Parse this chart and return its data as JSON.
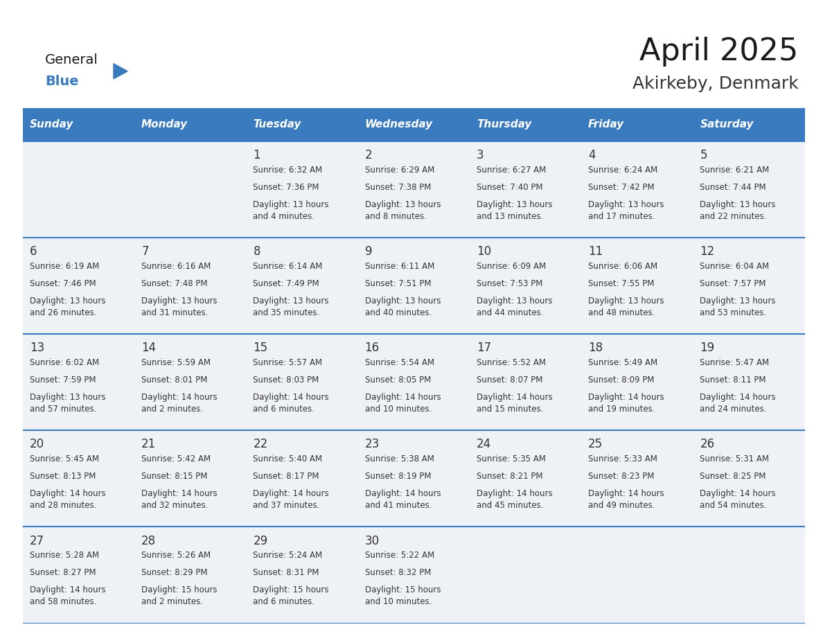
{
  "title": "April 2025",
  "subtitle": "Akirkeby, Denmark",
  "header_color": "#3a7abf",
  "header_text_color": "#ffffff",
  "cell_bg_even": "#eef2f7",
  "cell_bg_odd": "#ffffff",
  "border_color": "#3a7abf",
  "title_color": "#1a1a1a",
  "subtitle_color": "#333333",
  "text_color": "#333333",
  "day_headers": [
    "Sunday",
    "Monday",
    "Tuesday",
    "Wednesday",
    "Thursday",
    "Friday",
    "Saturday"
  ],
  "weeks": [
    [
      {
        "day": "",
        "sunrise": "",
        "sunset": "",
        "daylight": ""
      },
      {
        "day": "",
        "sunrise": "",
        "sunset": "",
        "daylight": ""
      },
      {
        "day": "1",
        "sunrise": "Sunrise: 6:32 AM",
        "sunset": "Sunset: 7:36 PM",
        "daylight": "Daylight: 13 hours\nand 4 minutes."
      },
      {
        "day": "2",
        "sunrise": "Sunrise: 6:29 AM",
        "sunset": "Sunset: 7:38 PM",
        "daylight": "Daylight: 13 hours\nand 8 minutes."
      },
      {
        "day": "3",
        "sunrise": "Sunrise: 6:27 AM",
        "sunset": "Sunset: 7:40 PM",
        "daylight": "Daylight: 13 hours\nand 13 minutes."
      },
      {
        "day": "4",
        "sunrise": "Sunrise: 6:24 AM",
        "sunset": "Sunset: 7:42 PM",
        "daylight": "Daylight: 13 hours\nand 17 minutes."
      },
      {
        "day": "5",
        "sunrise": "Sunrise: 6:21 AM",
        "sunset": "Sunset: 7:44 PM",
        "daylight": "Daylight: 13 hours\nand 22 minutes."
      }
    ],
    [
      {
        "day": "6",
        "sunrise": "Sunrise: 6:19 AM",
        "sunset": "Sunset: 7:46 PM",
        "daylight": "Daylight: 13 hours\nand 26 minutes."
      },
      {
        "day": "7",
        "sunrise": "Sunrise: 6:16 AM",
        "sunset": "Sunset: 7:48 PM",
        "daylight": "Daylight: 13 hours\nand 31 minutes."
      },
      {
        "day": "8",
        "sunrise": "Sunrise: 6:14 AM",
        "sunset": "Sunset: 7:49 PM",
        "daylight": "Daylight: 13 hours\nand 35 minutes."
      },
      {
        "day": "9",
        "sunrise": "Sunrise: 6:11 AM",
        "sunset": "Sunset: 7:51 PM",
        "daylight": "Daylight: 13 hours\nand 40 minutes."
      },
      {
        "day": "10",
        "sunrise": "Sunrise: 6:09 AM",
        "sunset": "Sunset: 7:53 PM",
        "daylight": "Daylight: 13 hours\nand 44 minutes."
      },
      {
        "day": "11",
        "sunrise": "Sunrise: 6:06 AM",
        "sunset": "Sunset: 7:55 PM",
        "daylight": "Daylight: 13 hours\nand 48 minutes."
      },
      {
        "day": "12",
        "sunrise": "Sunrise: 6:04 AM",
        "sunset": "Sunset: 7:57 PM",
        "daylight": "Daylight: 13 hours\nand 53 minutes."
      }
    ],
    [
      {
        "day": "13",
        "sunrise": "Sunrise: 6:02 AM",
        "sunset": "Sunset: 7:59 PM",
        "daylight": "Daylight: 13 hours\nand 57 minutes."
      },
      {
        "day": "14",
        "sunrise": "Sunrise: 5:59 AM",
        "sunset": "Sunset: 8:01 PM",
        "daylight": "Daylight: 14 hours\nand 2 minutes."
      },
      {
        "day": "15",
        "sunrise": "Sunrise: 5:57 AM",
        "sunset": "Sunset: 8:03 PM",
        "daylight": "Daylight: 14 hours\nand 6 minutes."
      },
      {
        "day": "16",
        "sunrise": "Sunrise: 5:54 AM",
        "sunset": "Sunset: 8:05 PM",
        "daylight": "Daylight: 14 hours\nand 10 minutes."
      },
      {
        "day": "17",
        "sunrise": "Sunrise: 5:52 AM",
        "sunset": "Sunset: 8:07 PM",
        "daylight": "Daylight: 14 hours\nand 15 minutes."
      },
      {
        "day": "18",
        "sunrise": "Sunrise: 5:49 AM",
        "sunset": "Sunset: 8:09 PM",
        "daylight": "Daylight: 14 hours\nand 19 minutes."
      },
      {
        "day": "19",
        "sunrise": "Sunrise: 5:47 AM",
        "sunset": "Sunset: 8:11 PM",
        "daylight": "Daylight: 14 hours\nand 24 minutes."
      }
    ],
    [
      {
        "day": "20",
        "sunrise": "Sunrise: 5:45 AM",
        "sunset": "Sunset: 8:13 PM",
        "daylight": "Daylight: 14 hours\nand 28 minutes."
      },
      {
        "day": "21",
        "sunrise": "Sunrise: 5:42 AM",
        "sunset": "Sunset: 8:15 PM",
        "daylight": "Daylight: 14 hours\nand 32 minutes."
      },
      {
        "day": "22",
        "sunrise": "Sunrise: 5:40 AM",
        "sunset": "Sunset: 8:17 PM",
        "daylight": "Daylight: 14 hours\nand 37 minutes."
      },
      {
        "day": "23",
        "sunrise": "Sunrise: 5:38 AM",
        "sunset": "Sunset: 8:19 PM",
        "daylight": "Daylight: 14 hours\nand 41 minutes."
      },
      {
        "day": "24",
        "sunrise": "Sunrise: 5:35 AM",
        "sunset": "Sunset: 8:21 PM",
        "daylight": "Daylight: 14 hours\nand 45 minutes."
      },
      {
        "day": "25",
        "sunrise": "Sunrise: 5:33 AM",
        "sunset": "Sunset: 8:23 PM",
        "daylight": "Daylight: 14 hours\nand 49 minutes."
      },
      {
        "day": "26",
        "sunrise": "Sunrise: 5:31 AM",
        "sunset": "Sunset: 8:25 PM",
        "daylight": "Daylight: 14 hours\nand 54 minutes."
      }
    ],
    [
      {
        "day": "27",
        "sunrise": "Sunrise: 5:28 AM",
        "sunset": "Sunset: 8:27 PM",
        "daylight": "Daylight: 14 hours\nand 58 minutes."
      },
      {
        "day": "28",
        "sunrise": "Sunrise: 5:26 AM",
        "sunset": "Sunset: 8:29 PM",
        "daylight": "Daylight: 15 hours\nand 2 minutes."
      },
      {
        "day": "29",
        "sunrise": "Sunrise: 5:24 AM",
        "sunset": "Sunset: 8:31 PM",
        "daylight": "Daylight: 15 hours\nand 6 minutes."
      },
      {
        "day": "30",
        "sunrise": "Sunrise: 5:22 AM",
        "sunset": "Sunset: 8:32 PM",
        "daylight": "Daylight: 15 hours\nand 10 minutes."
      },
      {
        "day": "",
        "sunrise": "",
        "sunset": "",
        "daylight": ""
      },
      {
        "day": "",
        "sunrise": "",
        "sunset": "",
        "daylight": ""
      },
      {
        "day": "",
        "sunrise": "",
        "sunset": "",
        "daylight": ""
      }
    ]
  ]
}
